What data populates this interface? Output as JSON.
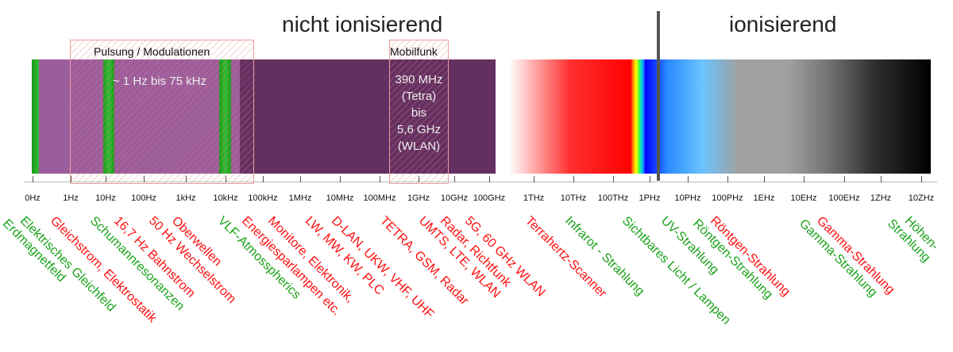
{
  "sections": {
    "non_ionizing": "nicht ionisierend",
    "ionizing": "ionisierend"
  },
  "pulse_box": {
    "label": "Pulsung / Modulationen",
    "range": "~ 1 Hz bis 75 kHz"
  },
  "mobile_box": {
    "label": "Mobilfunk",
    "lines": [
      "390 MHz",
      "(Tetra)",
      "bis",
      "5,6 GHz",
      "(WLAN)"
    ]
  },
  "ticks": [
    "0Hz",
    "1Hz",
    "10Hz",
    "100Hz",
    "1kHz",
    "10kHz",
    "100kHz",
    "1MHz",
    "10MHz",
    "100MHz",
    "1GHz",
    "10GHz",
    "100GHz",
    "1THz",
    "10THz",
    "100THz",
    "1PHz",
    "10PHz",
    "100PHz",
    "1EHz",
    "10EHz",
    "100EHz",
    "1ZHz",
    "10ZHz"
  ],
  "labels": [
    {
      "lines": [
        "Elektrisches Gleichfeld",
        "Erdmagnetfeld"
      ],
      "color": "green"
    },
    {
      "lines": [
        "Gleichstrom, Elektrostatik"
      ],
      "color": "red"
    },
    {
      "lines": [
        "Schumannresonanzen"
      ],
      "color": "green"
    },
    {
      "lines": [
        "16,7 Hz Bahnstrom"
      ],
      "color": "red"
    },
    {
      "lines": [
        "50 Hz Wechselstrom"
      ],
      "color": "red"
    },
    {
      "lines": [
        "Oberwellen"
      ],
      "color": "red"
    },
    {
      "lines": [
        "VLF-Atmosspherics"
      ],
      "color": "green"
    },
    {
      "lines": [
        "Energiesparlampen etc."
      ],
      "color": "red"
    },
    {
      "lines": [
        "Monitore, Elektronik,"
      ],
      "color": "red"
    },
    {
      "lines": [
        "LW, MW, KW, PLC"
      ],
      "color": "red"
    },
    {
      "lines": [
        "D-LAN, UKW, VHF, UHF"
      ],
      "color": "red"
    },
    {
      "lines": [
        "TETRA, GSM, Radar"
      ],
      "color": "red"
    },
    {
      "lines": [
        "UMTS, LTE, WLAN"
      ],
      "color": "red"
    },
    {
      "lines": [
        "Radar, Richtfunk"
      ],
      "color": "red"
    },
    {
      "lines": [
        "5G, 60 GHz WLAN"
      ],
      "color": "red"
    },
    {
      "lines": [
        "Terrahertz-Scanner"
      ],
      "color": "red"
    },
    {
      "lines": [
        "Infrarot - Strahlung"
      ],
      "color": "green"
    },
    {
      "lines": [
        "Sichtbares Licht / Lampen"
      ],
      "color": "green",
      "second_color": "red"
    },
    {
      "lines": [
        "UV-Strahlung"
      ],
      "color": "green"
    },
    {
      "lines": [
        "Röntgen-Strahlung",
        "Röntgen-Strahlung"
      ],
      "color": "red",
      "first_color": "red",
      "second_color": "green"
    },
    {
      "lines": [
        "Gamma-Strahlung",
        "Gamma-Strahlung"
      ],
      "color": "red",
      "first_color": "red",
      "second_color": "green"
    },
    {
      "lines": [
        "Höhen-",
        "Strahlung"
      ],
      "color": "green"
    }
  ],
  "colors": {
    "purple_dark": "#643061",
    "purple_light": "#9c5d9c",
    "green": "#1aa31a",
    "red": "#ff1010",
    "divider": "#555555"
  }
}
